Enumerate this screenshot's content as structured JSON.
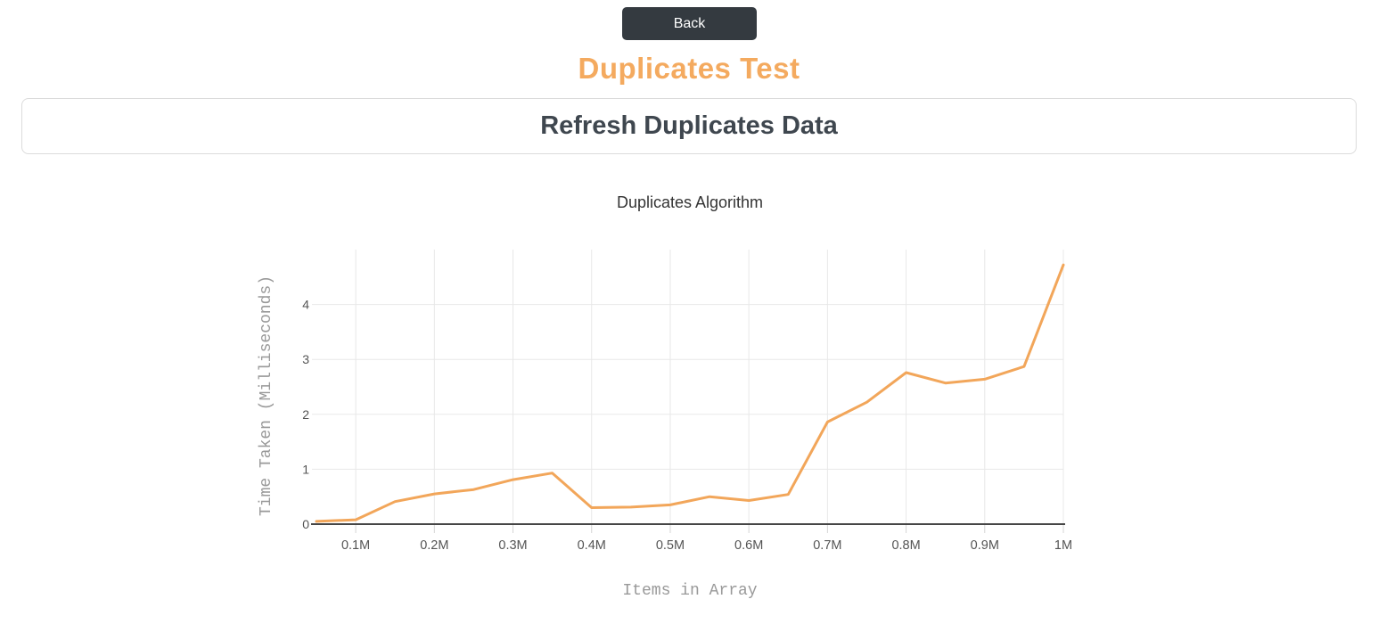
{
  "header": {
    "back_label": "Back",
    "title": "Duplicates Test",
    "refresh_label": "Refresh Duplicates Data"
  },
  "colors": {
    "page_bg": "#ffffff",
    "back_button_bg": "#343a40",
    "back_button_text": "#ffffff",
    "title_color": "#f4aa5f",
    "refresh_border": "#dbdbdb",
    "refresh_text": "#3f474f",
    "chart_title": "#333333",
    "axis_title": "#999999",
    "tick_label": "#555555",
    "grid_line": "#e8e8e8",
    "tick_mark": "#d5d5d5",
    "axis_line": "#464646",
    "series_line": "#f2a65a"
  },
  "chart_data": {
    "type": "line",
    "title": "Duplicates Algorithm",
    "xlabel": "Items in Array",
    "ylabel": "Time Taken (Milliseconds)",
    "x": [
      0.05,
      0.1,
      0.15,
      0.2,
      0.25,
      0.3,
      0.35,
      0.4,
      0.45,
      0.5,
      0.55,
      0.6,
      0.65,
      0.7,
      0.75,
      0.8,
      0.85,
      0.9,
      0.95,
      1.0
    ],
    "values": [
      0.05,
      0.08,
      0.41,
      0.55,
      0.63,
      0.81,
      0.93,
      0.3,
      0.31,
      0.35,
      0.5,
      0.43,
      0.54,
      1.86,
      2.22,
      2.76,
      2.57,
      2.64,
      2.87,
      4.72
    ],
    "x_ticks": [
      0.1,
      0.2,
      0.3,
      0.4,
      0.5,
      0.6,
      0.7,
      0.8,
      0.9,
      1.0
    ],
    "x_tick_labels": [
      "0.1M",
      "0.2M",
      "0.3M",
      "0.4M",
      "0.5M",
      "0.6M",
      "0.7M",
      "0.8M",
      "0.9M",
      "1M"
    ],
    "y_ticks": [
      0,
      1,
      2,
      3,
      4
    ],
    "y_tick_labels": [
      "0",
      "1",
      "2",
      "3",
      "4"
    ],
    "xlim": [
      0.05,
      1.0
    ],
    "ylim": [
      0,
      5
    ],
    "grid": true,
    "legend": "none"
  }
}
